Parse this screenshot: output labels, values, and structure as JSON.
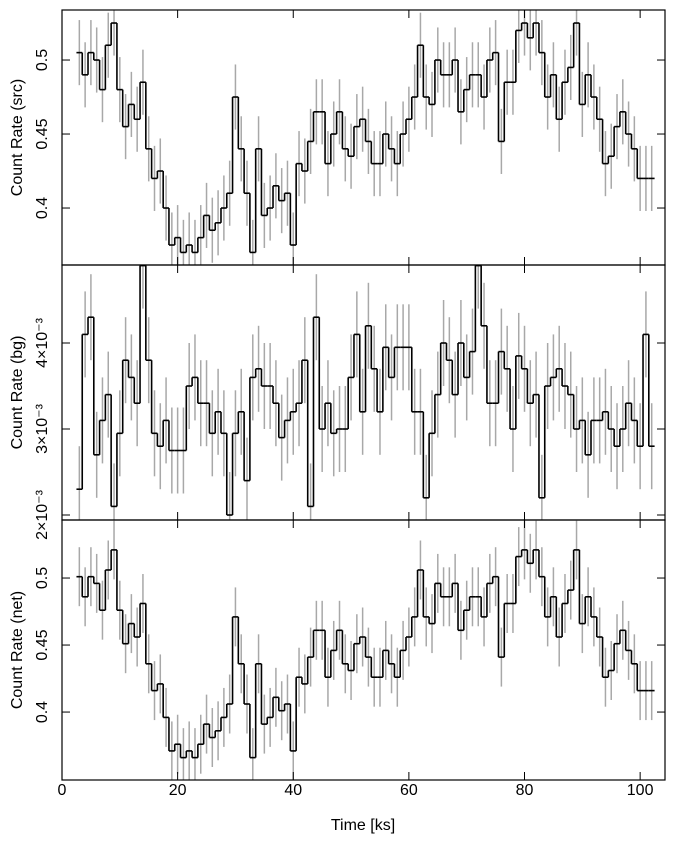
{
  "chart_data": {
    "type": "step",
    "xlabel": "Time [ks]",
    "xlim": [
      0,
      104.3
    ],
    "xticks": [
      0,
      20,
      40,
      60,
      80,
      100
    ],
    "line_color": "#000000",
    "error_color": "#a8a8a8",
    "x": [
      3,
      4,
      5,
      6,
      7,
      8,
      9,
      10,
      11,
      12,
      13,
      14,
      15,
      16,
      17,
      18,
      19,
      20,
      21,
      22,
      23,
      24,
      25,
      26,
      27,
      28,
      29,
      30,
      31,
      32,
      33,
      34,
      35,
      36,
      37,
      38,
      39,
      40,
      41,
      42,
      43,
      44,
      45,
      46,
      47,
      48,
      49,
      50,
      51,
      52,
      53,
      54,
      55,
      56,
      57,
      58,
      59,
      60,
      61,
      62,
      63,
      64,
      65,
      66,
      67,
      68,
      69,
      70,
      71,
      72,
      73,
      74,
      75,
      76,
      77,
      78,
      79,
      80,
      81,
      82,
      83,
      84,
      85,
      86,
      87,
      88,
      89,
      90,
      91,
      92,
      93,
      94,
      95,
      96,
      97,
      98,
      99,
      100,
      101,
      102
    ],
    "panels": [
      {
        "ylabel": "Count Rate (src)",
        "ylim": [
          0.3615,
          0.5338
        ],
        "yticks": [
          0.4,
          0.45,
          0.5
        ],
        "error": 0.022,
        "values": [
          0.505,
          0.49,
          0.505,
          0.5,
          0.48,
          0.51,
          0.525,
          0.48,
          0.455,
          0.47,
          0.46,
          0.485,
          0.44,
          0.42,
          0.425,
          0.4,
          0.375,
          0.38,
          0.37,
          0.375,
          0.37,
          0.38,
          0.395,
          0.385,
          0.39,
          0.4,
          0.41,
          0.475,
          0.44,
          0.41,
          0.37,
          0.44,
          0.395,
          0.4,
          0.415,
          0.405,
          0.41,
          0.375,
          0.43,
          0.425,
          0.445,
          0.465,
          0.465,
          0.43,
          0.45,
          0.465,
          0.44,
          0.435,
          0.455,
          0.46,
          0.445,
          0.43,
          0.43,
          0.45,
          0.44,
          0.43,
          0.45,
          0.46,
          0.475,
          0.51,
          0.475,
          0.47,
          0.5,
          0.49,
          0.49,
          0.5,
          0.465,
          0.48,
          0.49,
          0.49,
          0.475,
          0.5,
          0.505,
          0.445,
          0.485,
          0.485,
          0.52,
          0.525,
          0.515,
          0.525,
          0.505,
          0.475,
          0.49,
          0.46,
          0.485,
          0.495,
          0.525,
          0.47,
          0.49,
          0.475,
          0.46,
          0.43,
          0.435,
          0.455,
          0.465,
          0.45,
          0.44,
          0.42,
          0.42,
          0.42
        ]
      },
      {
        "ylabel": "Count Rate (bg)",
        "ylim": [
          0.001942,
          0.004907
        ],
        "yticks": [
          {
            "value": 0.002,
            "label": "2×10⁻³"
          },
          {
            "value": 0.003,
            "label": "3×10⁻³"
          },
          {
            "value": 0.004,
            "label": "4×10⁻³"
          }
        ],
        "error": 0.0005,
        "values": [
          0.0023,
          0.0041,
          0.0043,
          0.0027,
          0.0031,
          0.0034,
          0.0021,
          0.00295,
          0.0038,
          0.0036,
          0.0033,
          0.0049,
          0.0038,
          0.00295,
          0.0028,
          0.0031,
          0.00275,
          0.00275,
          0.00275,
          0.0035,
          0.0036,
          0.0033,
          0.0033,
          0.00295,
          0.0032,
          0.00295,
          0.002,
          0.00295,
          0.0032,
          0.0024,
          0.0036,
          0.0037,
          0.0035,
          0.0035,
          0.0033,
          0.0029,
          0.0031,
          0.0032,
          0.0033,
          0.0038,
          0.0021,
          0.0043,
          0.003,
          0.0033,
          0.00295,
          0.003,
          0.003,
          0.0036,
          0.0041,
          0.0032,
          0.0042,
          0.0037,
          0.0032,
          0.00395,
          0.0036,
          0.00395,
          0.00395,
          0.00395,
          0.0032,
          0.0032,
          0.0022,
          0.00295,
          0.0034,
          0.004,
          0.0038,
          0.0034,
          0.004,
          0.0036,
          0.0039,
          0.0049,
          0.0042,
          0.0033,
          0.0033,
          0.0039,
          0.0037,
          0.003,
          0.00385,
          0.0037,
          0.0033,
          0.0034,
          0.0022,
          0.0035,
          0.0036,
          0.0037,
          0.0035,
          0.0034,
          0.003,
          0.0031,
          0.0027,
          0.0031,
          0.0031,
          0.0032,
          0.003,
          0.0028,
          0.003,
          0.0033,
          0.0031,
          0.0028,
          0.0041,
          0.0028
        ]
      },
      {
        "ylabel": "Count Rate (net)",
        "ylim": [
          0.3493,
          0.5433
        ],
        "yticks": [
          0.4,
          0.45,
          0.5
        ],
        "error": 0.022,
        "values": [
          0.501,
          0.486,
          0.501,
          0.496,
          0.476,
          0.506,
          0.521,
          0.476,
          0.451,
          0.466,
          0.456,
          0.481,
          0.436,
          0.416,
          0.421,
          0.396,
          0.371,
          0.376,
          0.366,
          0.371,
          0.366,
          0.376,
          0.391,
          0.381,
          0.386,
          0.396,
          0.406,
          0.471,
          0.436,
          0.406,
          0.366,
          0.436,
          0.391,
          0.396,
          0.411,
          0.401,
          0.406,
          0.371,
          0.426,
          0.421,
          0.441,
          0.461,
          0.461,
          0.426,
          0.446,
          0.461,
          0.436,
          0.431,
          0.451,
          0.456,
          0.441,
          0.426,
          0.426,
          0.446,
          0.436,
          0.426,
          0.446,
          0.456,
          0.471,
          0.506,
          0.471,
          0.466,
          0.496,
          0.486,
          0.486,
          0.496,
          0.461,
          0.476,
          0.486,
          0.486,
          0.471,
          0.496,
          0.501,
          0.441,
          0.481,
          0.481,
          0.516,
          0.521,
          0.511,
          0.521,
          0.501,
          0.471,
          0.486,
          0.456,
          0.481,
          0.491,
          0.521,
          0.466,
          0.486,
          0.471,
          0.456,
          0.426,
          0.431,
          0.451,
          0.461,
          0.446,
          0.436,
          0.416,
          0.416,
          0.416
        ]
      }
    ]
  }
}
